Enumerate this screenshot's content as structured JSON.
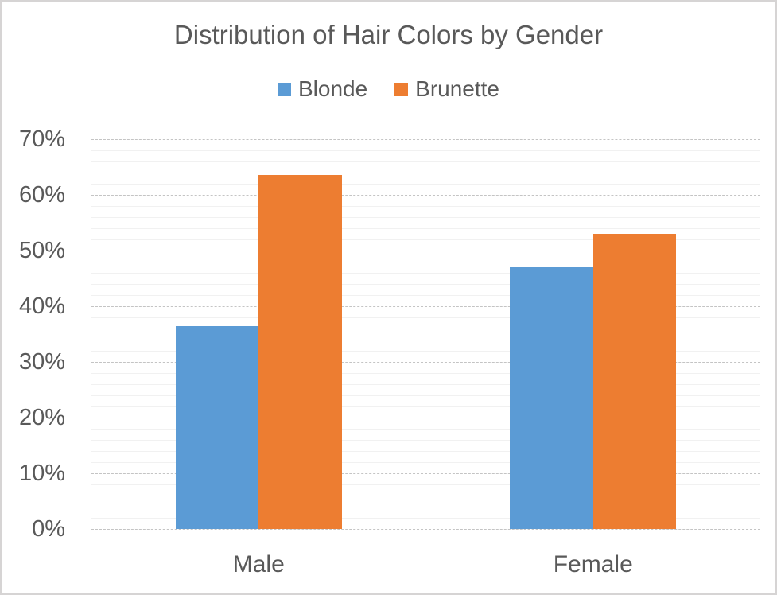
{
  "chart_data": {
    "type": "bar",
    "title": "Distribution of Hair Colors by Gender",
    "categories": [
      "Male",
      "Female"
    ],
    "series": [
      {
        "name": "Blonde",
        "color": "#5B9BD5",
        "values": [
          36.4,
          47.0
        ]
      },
      {
        "name": "Brunette",
        "color": "#ED7D31",
        "values": [
          63.6,
          53.0
        ]
      }
    ],
    "xlabel": "",
    "ylabel": "",
    "ylim": [
      0,
      70
    ],
    "y_major_step": 10,
    "y_minor_step": 2,
    "y_tick_labels": [
      "0%",
      "10%",
      "20%",
      "30%",
      "40%",
      "50%",
      "60%",
      "70%"
    ],
    "legend_position": "top",
    "grid": "horizontal only: minor lines every 2%, dashed major lines every 10%"
  },
  "colors": {
    "blonde": "#5B9BD5",
    "brunette": "#ED7D31",
    "text": "#595959",
    "major_gridline": "#C4C4C4",
    "minor_gridline": "#F1F1F1",
    "frame_border": "#D6D4D4",
    "background": "#FFFFFF"
  }
}
